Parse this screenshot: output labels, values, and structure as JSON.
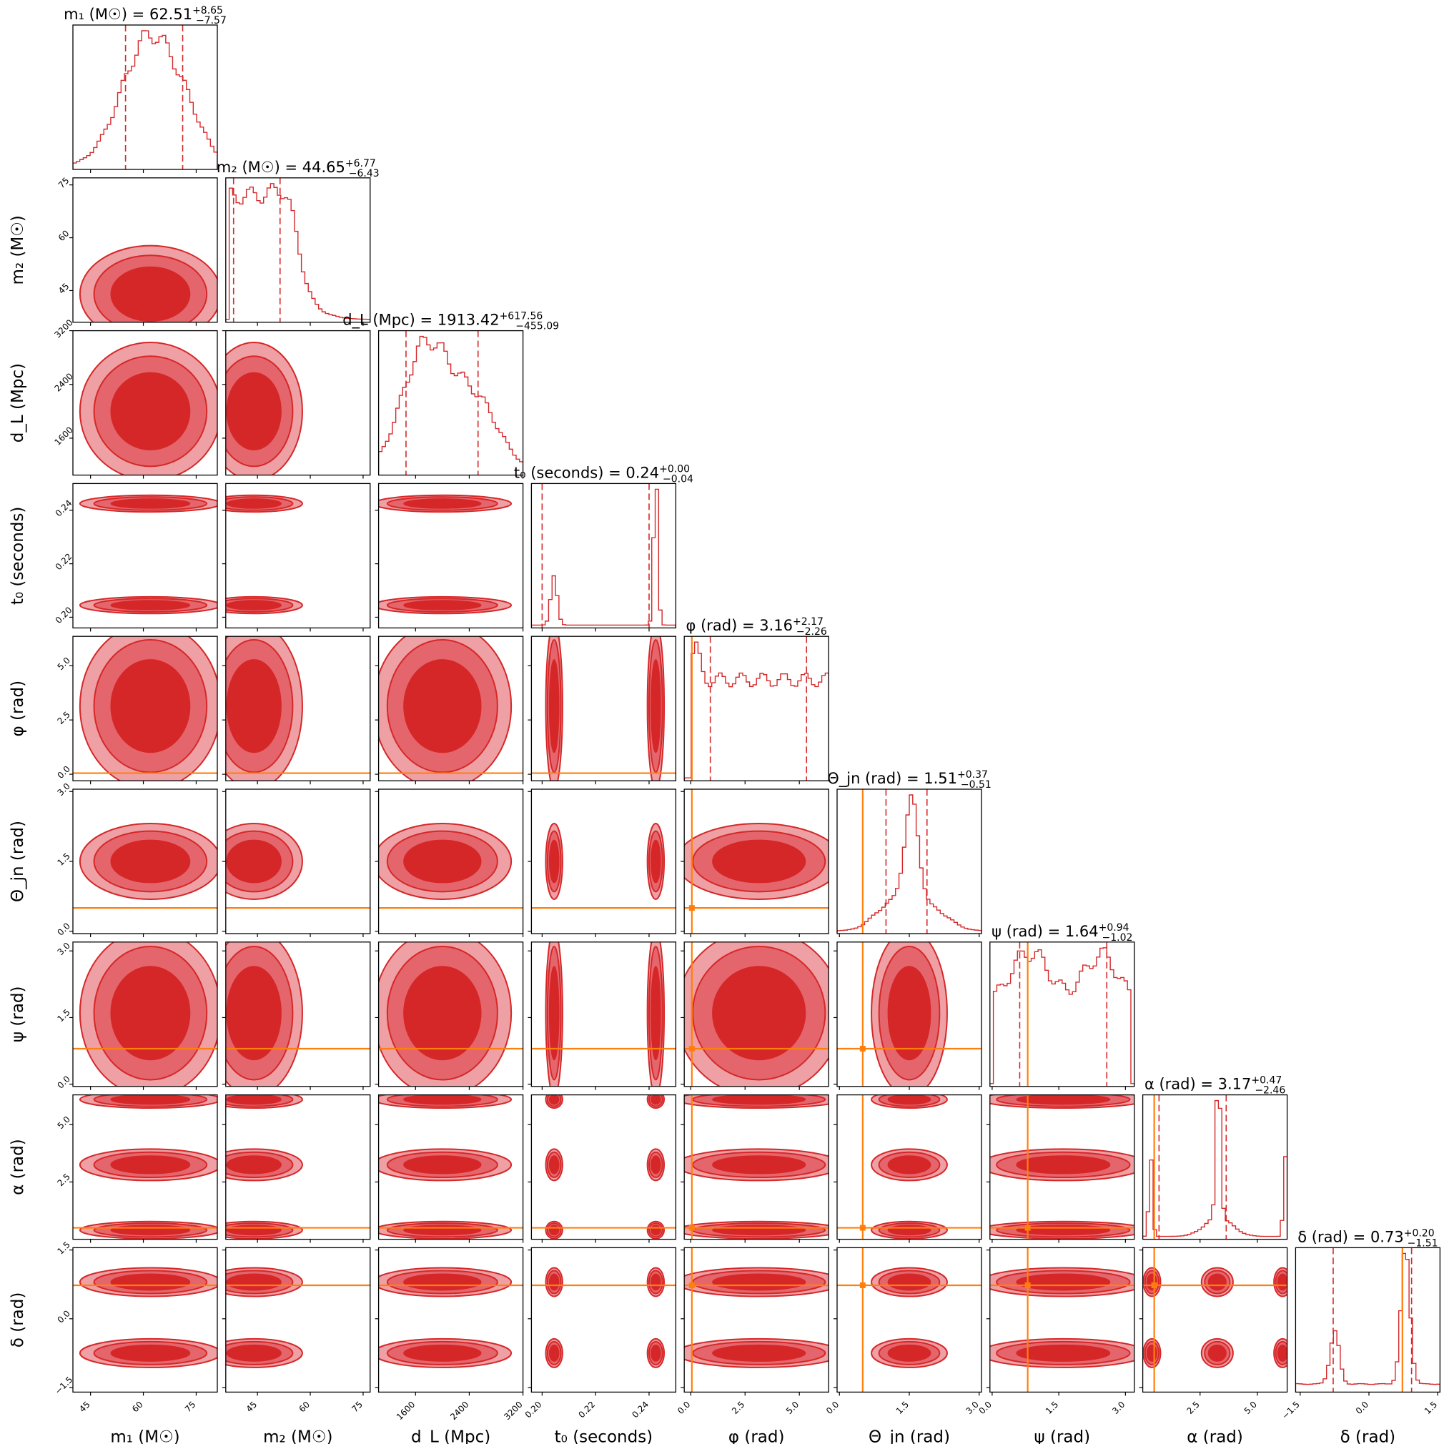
{
  "colors": {
    "posterior": "#d62728",
    "truth": "#ff7f0e",
    "contour_light": "#eea0a4",
    "contour_mid": "#e4666c"
  },
  "chart_data": {
    "type": "corner",
    "parameters": [
      {
        "key": "m1",
        "label": "m₁ (M☉)",
        "title": "m₁ (M☉) = 62.51",
        "median": 62.51,
        "err_plus": "+8.65",
        "err_minus": "−7.57",
        "range": [
          40,
          81
        ],
        "ticks": [
          45,
          60,
          75
        ],
        "ticklabels": [
          "45",
          "60",
          "75"
        ],
        "truth": null
      },
      {
        "key": "m2",
        "label": "m₂ (M☉)",
        "title": "m₂ (M☉) = 44.65",
        "median": 44.65,
        "err_plus": "+6.77",
        "err_minus": "−6.43",
        "range": [
          36,
          77
        ],
        "ticks": [
          45,
          60,
          75
        ],
        "ticklabels": [
          "45",
          "60",
          "75"
        ],
        "truth": null
      },
      {
        "key": "dL",
        "label": "d_L (Mpc)",
        "title": "d_L (Mpc) = 1913.42",
        "median": 1913.42,
        "err_plus": "+617.56",
        "err_minus": "−455.09",
        "range": [
          1050,
          3200
        ],
        "ticks": [
          1600,
          2400,
          3200
        ],
        "ticklabels": [
          "1600",
          "2400",
          "3200"
        ],
        "truth": null
      },
      {
        "key": "t0",
        "label": "t₀ (seconds)",
        "title": "t₀ (seconds) = 0.24",
        "median": 0.24,
        "err_plus": "+0.00",
        "err_minus": "−0.04",
        "range": [
          0.196,
          0.25
        ],
        "ticks": [
          0.2,
          0.22,
          0.24
        ],
        "ticklabels": [
          "0.20",
          "0.22",
          "0.24"
        ],
        "truth": null
      },
      {
        "key": "phi",
        "label": "φ (rad)",
        "title": "φ (rad) = 3.16",
        "median": 3.16,
        "err_plus": "+2.17",
        "err_minus": "−2.26",
        "range": [
          -0.3,
          6.35
        ],
        "ticks": [
          0,
          2.5,
          5
        ],
        "ticklabels": [
          "0.0",
          "2.5",
          "5.0"
        ],
        "truth": 0.05
      },
      {
        "key": "thetajn",
        "label": "Θ_jn (rad)",
        "title": "Θ_jn (rad) = 1.51",
        "median": 1.51,
        "err_plus": "+0.37",
        "err_minus": "−0.51",
        "range": [
          -0.05,
          3.05
        ],
        "ticks": [
          0,
          1.5,
          3
        ],
        "ticklabels": [
          "0.0",
          "1.5",
          "3.0"
        ],
        "truth": 0.5
      },
      {
        "key": "psi",
        "label": "ψ (rad)",
        "title": "ψ (rad) = 1.64",
        "median": 1.64,
        "err_plus": "+0.94",
        "err_minus": "−1.02",
        "range": [
          -0.05,
          3.2
        ],
        "ticks": [
          0,
          1.5,
          3
        ],
        "ticklabels": [
          "0.0",
          "1.5",
          "3.0"
        ],
        "truth": 0.8
      },
      {
        "key": "alpha",
        "label": "α (rad)",
        "title": "α (rad) = 3.17",
        "median": 3.17,
        "err_plus": "+0.47",
        "err_minus": "−2.46",
        "range": [
          0,
          6.3
        ],
        "ticks": [
          2.5,
          5
        ],
        "ticklabels": [
          "2.5",
          "5.0"
        ],
        "truth": 0.5
      },
      {
        "key": "delta",
        "label": "δ (rad)",
        "title": "δ (rad) = 0.73",
        "median": 0.73,
        "err_plus": "+0.20",
        "err_minus": "−1.51",
        "range": [
          -1.6,
          1.55
        ],
        "ticks": [
          -1.5,
          0,
          1.5
        ],
        "ticklabels": [
          "−1.5",
          "0.0",
          "1.5"
        ],
        "truth": 0.73
      }
    ],
    "quantile_lines": [
      [
        54.94,
        71.16
      ],
      [
        38.22,
        51.42
      ],
      [
        1458.33,
        2530.98
      ],
      [
        0.2,
        0.24
      ],
      [
        0.9,
        5.33
      ],
      [
        1.0,
        1.88
      ],
      [
        0.62,
        2.58
      ],
      [
        0.71,
        3.64
      ],
      [
        -0.78,
        0.93
      ]
    ]
  }
}
